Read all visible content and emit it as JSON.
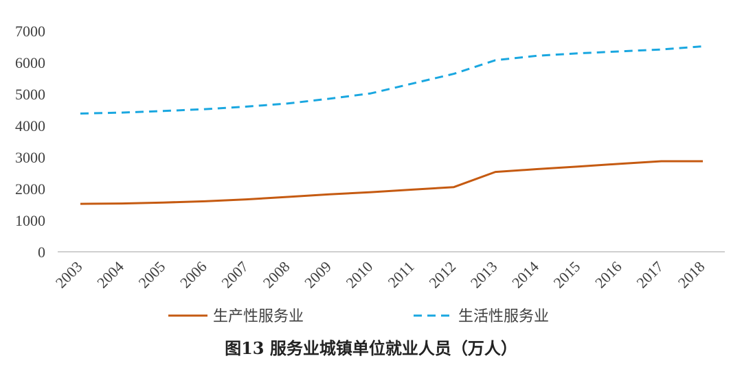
{
  "caption": "图13  服务业城镇单位就业人员（万人）",
  "chart_data": {
    "type": "line",
    "title": "",
    "xlabel": "",
    "ylabel": "",
    "categories": [
      "2003",
      "2004",
      "2005",
      "2006",
      "2007",
      "2008",
      "2009",
      "2010",
      "2011",
      "2012",
      "2013",
      "2014",
      "2015",
      "2016",
      "2017",
      "2018"
    ],
    "ylim": [
      0,
      7000
    ],
    "yticks": [
      0,
      1000,
      2000,
      3000,
      4000,
      5000,
      6000,
      7000
    ],
    "grid": false,
    "legend_position": "bottom",
    "series": [
      {
        "name": "生产性服务业",
        "color": "#C55A11",
        "style": "solid",
        "values": [
          1520,
          1530,
          1560,
          1600,
          1660,
          1740,
          1820,
          1890,
          1970,
          2050,
          2530,
          2620,
          2700,
          2790,
          2870,
          2870
        ]
      },
      {
        "name": "生活性服务业",
        "color": "#1AA7E0",
        "style": "dashed",
        "values": [
          4380,
          4410,
          4460,
          4520,
          4600,
          4700,
          4850,
          5020,
          5330,
          5640,
          6070,
          6210,
          6290,
          6350,
          6410,
          6510
        ]
      }
    ]
  }
}
